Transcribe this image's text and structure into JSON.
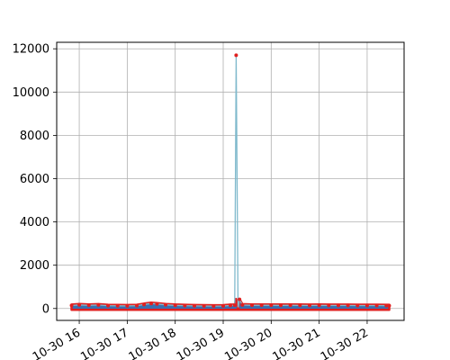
{
  "chart_data": {
    "type": "line",
    "title": "",
    "xlabel": "",
    "ylabel": "",
    "x_ticks": [
      "10-30 16",
      "10-30 17",
      "10-30 18",
      "10-30 19",
      "10-30 20",
      "10-30 21",
      "10-30 22"
    ],
    "x_tick_hours": [
      16,
      17,
      18,
      19,
      20,
      21,
      22
    ],
    "y_ticks": [
      0,
      2000,
      4000,
      6000,
      8000,
      10000,
      12000
    ],
    "xlim_hours": [
      15.53,
      22.77
    ],
    "ylim": [
      -550,
      12300
    ],
    "grid": true,
    "series": [
      {
        "name": "",
        "line_color": "#7fb9cc",
        "marker_color": "#e02020",
        "fill_color": "#3a6fb0",
        "points": [
          [
            15.84,
            140
          ],
          [
            16.0,
            165
          ],
          [
            16.2,
            150
          ],
          [
            16.4,
            160
          ],
          [
            16.6,
            130
          ],
          [
            16.8,
            125
          ],
          [
            17.0,
            120
          ],
          [
            17.2,
            130
          ],
          [
            17.35,
            185
          ],
          [
            17.5,
            230
          ],
          [
            17.62,
            210
          ],
          [
            17.8,
            170
          ],
          [
            18.0,
            145
          ],
          [
            18.2,
            130
          ],
          [
            18.4,
            120
          ],
          [
            18.6,
            115
          ],
          [
            18.8,
            110
          ],
          [
            19.0,
            115
          ],
          [
            19.15,
            140
          ],
          [
            19.24,
            150
          ],
          [
            19.27,
            11700
          ],
          [
            19.31,
            -30
          ],
          [
            19.34,
            420
          ],
          [
            19.4,
            160
          ],
          [
            19.6,
            150
          ],
          [
            19.8,
            150
          ],
          [
            20.0,
            150
          ],
          [
            20.2,
            145
          ],
          [
            20.4,
            150
          ],
          [
            20.6,
            145
          ],
          [
            20.8,
            140
          ],
          [
            21.0,
            145
          ],
          [
            21.2,
            140
          ],
          [
            21.4,
            140
          ],
          [
            21.6,
            140
          ],
          [
            21.8,
            135
          ],
          [
            22.0,
            135
          ],
          [
            22.2,
            135
          ],
          [
            22.4,
            130
          ],
          [
            22.46,
            130
          ]
        ]
      }
    ]
  }
}
